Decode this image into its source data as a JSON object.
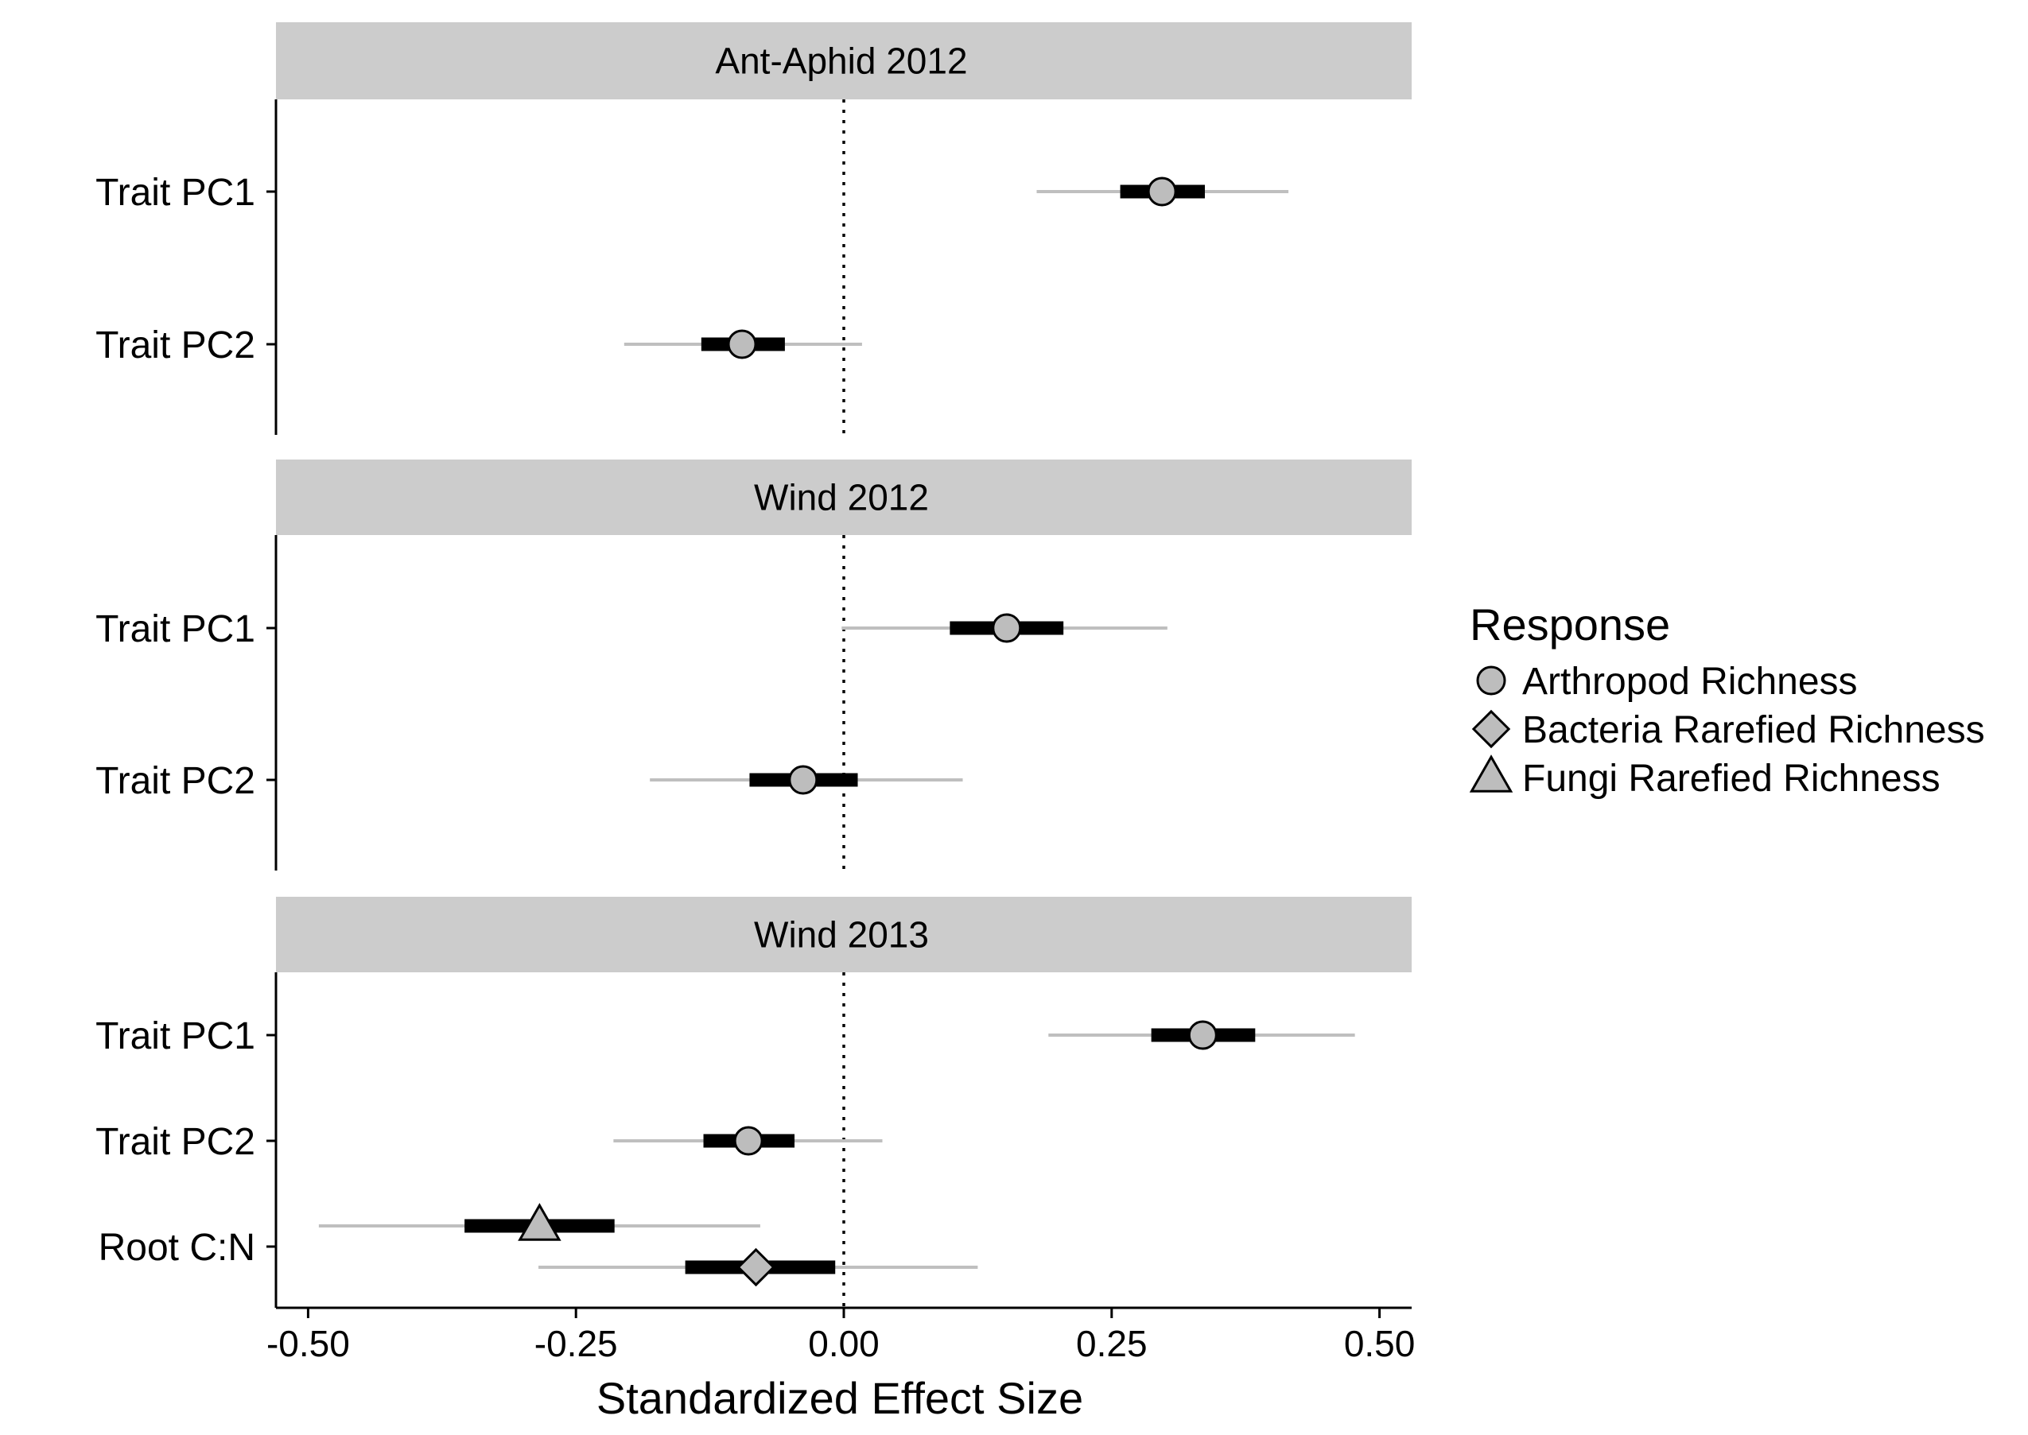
{
  "chart_data": {
    "type": "forest",
    "xlabel": "Standardized Effect Size",
    "xlim": [
      -0.53,
      0.53
    ],
    "xticks": [
      -0.5,
      -0.25,
      0.0,
      0.25,
      0.5
    ],
    "xtick_labels": [
      "-0.50",
      "-0.25",
      "0.00",
      "0.25",
      "0.50"
    ],
    "reference_line": 0.0,
    "grid": false,
    "legend": {
      "title": "Response",
      "position": "right",
      "entries": [
        {
          "label": "Arthropod Richness",
          "shape": "circle"
        },
        {
          "label": "Bacteria Rarefied Richness",
          "shape": "diamond"
        },
        {
          "label": "Fungi Rarefied Richness",
          "shape": "triangle"
        }
      ]
    },
    "colors": {
      "strip": "#cccccc",
      "point_fill": "#bdbdbd",
      "inner_interval": "#000000",
      "outer_interval": "#bfbfbf",
      "reference_line": "#000000"
    },
    "panels": [
      {
        "title": "Ant-Aphid 2012",
        "rows": [
          "Trait PC1",
          "Trait PC2"
        ],
        "estimates": [
          {
            "row": "Trait PC1",
            "response": "Arthropod Richness",
            "estimate": 0.297,
            "inner": [
              0.258,
              0.337
            ],
            "outer": [
              0.18,
              0.415
            ]
          },
          {
            "row": "Trait PC2",
            "response": "Arthropod Richness",
            "estimate": -0.095,
            "inner": [
              -0.133,
              -0.055
            ],
            "outer": [
              -0.205,
              0.017
            ]
          }
        ]
      },
      {
        "title": "Wind 2012",
        "rows": [
          "Trait PC1",
          "Trait PC2"
        ],
        "estimates": [
          {
            "row": "Trait PC1",
            "response": "Arthropod Richness",
            "estimate": 0.152,
            "inner": [
              0.099,
              0.205
            ],
            "outer": [
              -0.002,
              0.302
            ]
          },
          {
            "row": "Trait PC2",
            "response": "Arthropod Richness",
            "estimate": -0.038,
            "inner": [
              -0.088,
              0.013
            ],
            "outer": [
              -0.181,
              0.111
            ]
          }
        ]
      },
      {
        "title": "Wind 2013",
        "rows": [
          "Trait PC1",
          "Trait PC2",
          "Root C:N"
        ],
        "estimates": [
          {
            "row": "Trait PC1",
            "response": "Arthropod Richness",
            "estimate": 0.335,
            "inner": [
              0.287,
              0.384
            ],
            "outer": [
              0.191,
              0.477
            ]
          },
          {
            "row": "Trait PC2",
            "response": "Arthropod Richness",
            "estimate": -0.089,
            "inner": [
              -0.131,
              -0.046
            ],
            "outer": [
              -0.215,
              0.036
            ]
          },
          {
            "row": "Root C:N",
            "response": "Fungi Rarefied Richness",
            "estimate": -0.284,
            "inner": [
              -0.354,
              -0.214
            ],
            "outer": [
              -0.49,
              -0.078
            ]
          },
          {
            "row": "Root C:N",
            "response": "Bacteria Rarefied Richness",
            "estimate": -0.082,
            "inner": [
              -0.148,
              -0.008
            ],
            "outer": [
              -0.285,
              0.125
            ]
          }
        ]
      }
    ]
  }
}
